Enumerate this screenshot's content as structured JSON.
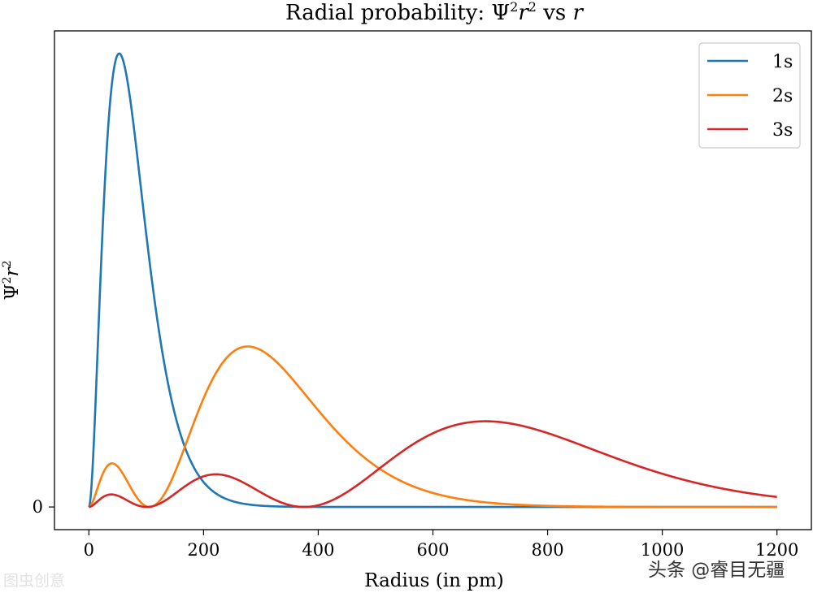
{
  "chart_data": {
    "type": "line",
    "title": "Radial probability: Ψ²r² vs r",
    "title_parts": {
      "pre": "Radial probability: Ψ",
      "sup1": "2",
      "mid": "r",
      "sup2": "2",
      "post": " vs ",
      "var": "r"
    },
    "xlabel": "Radius (in pm)",
    "ylabel": "Ψ²r²",
    "ylabel_parts": {
      "pre": "Ψ",
      "sup1": "2",
      "mid": "r",
      "sup2": "2"
    },
    "xlim": [
      -60,
      1260
    ],
    "ylim": [
      -0.05,
      1.05
    ],
    "x_ticks": [
      0,
      200,
      400,
      600,
      800,
      1000,
      1200
    ],
    "x_tick_labels": [
      "0",
      "200",
      "400",
      "600",
      "800",
      "1000",
      "1200"
    ],
    "y_ticks": [
      0
    ],
    "y_tick_labels": [
      "0"
    ],
    "x_range": [
      0,
      1200
    ],
    "bohr_radius_pm": 52.9,
    "peak_normalization": 0.27,
    "legend_position": "top-right",
    "grid": false,
    "series": [
      {
        "name": "1s",
        "color": "#1f77b4"
      },
      {
        "name": "2s",
        "color": "#ff7f0e"
      },
      {
        "name": "3s",
        "color": "#d62728"
      }
    ]
  },
  "watermarks": {
    "left": "图虫创意",
    "right": "头条 @睿目无疆"
  }
}
